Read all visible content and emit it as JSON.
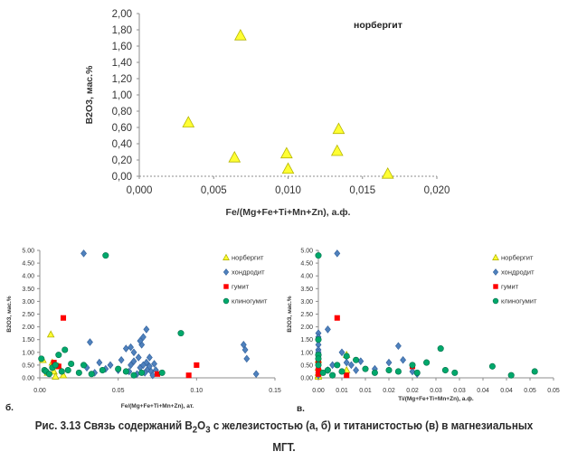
{
  "chart_data": [
    {
      "type": "scatter",
      "panel_label": "",
      "title": "норбергит",
      "xlabel": "Fe/(Mg+Fe+Ti+Mn+Zn), а.ф.",
      "ylabel": "B2O3, мас.%",
      "xlim": [
        0,
        0.02
      ],
      "ylim": [
        0,
        2
      ],
      "x_ticks": [
        "0,000",
        "0,005",
        "0,010",
        "0,015",
        "0,020"
      ],
      "y_ticks": [
        "0,00",
        "0,20",
        "0,40",
        "0,60",
        "0,80",
        "1,00",
        "1,20",
        "1,40",
        "1,60",
        "1,80",
        "2,00"
      ],
      "grid": false,
      "series": [
        {
          "marker": "triangle",
          "color": "#ffff33",
          "points": [
            [
              0.0033,
              0.66
            ],
            [
              0.0064,
              0.23
            ],
            [
              0.0068,
              1.73
            ],
            [
              0.0099,
              0.28
            ],
            [
              0.01,
              0.09
            ],
            [
              0.0133,
              0.31
            ],
            [
              0.0134,
              0.58
            ],
            [
              0.0167,
              0.03
            ]
          ]
        }
      ]
    },
    {
      "type": "scatter",
      "panel_label": "б.",
      "xlabel": "Fe/(Mg+Fe+Ti+Mn+Zn), ат.",
      "ylabel": "B2O3, мас.%",
      "xlim": [
        0,
        0.15
      ],
      "ylim": [
        0,
        5
      ],
      "x_ticks": [
        "0.00",
        "0.05",
        "0.10",
        "0.15"
      ],
      "y_ticks": [
        "0.00",
        "0.50",
        "1.00",
        "1.50",
        "2.00",
        "2.50",
        "3.00",
        "3.50",
        "4.00",
        "4.50",
        "5.00"
      ],
      "legend_position": "top-right",
      "grid": false,
      "series": [
        {
          "name": "норбергит",
          "marker": "triangle",
          "color": "#ffff33",
          "points": [
            [
              0.002,
              0.7
            ],
            [
              0.007,
              1.7
            ],
            [
              0.009,
              0.25
            ],
            [
              0.01,
              0.05
            ],
            [
              0.012,
              0.45
            ],
            [
              0.005,
              0.2
            ],
            [
              0.015,
              0.1
            ],
            [
              0.008,
              0.6
            ]
          ]
        },
        {
          "name": "хондродит",
          "marker": "diamond",
          "color": "#4f81bd",
          "points": [
            [
              0.028,
              4.88
            ],
            [
              0.032,
              1.4
            ],
            [
              0.03,
              0.4
            ],
            [
              0.035,
              0.2
            ],
            [
              0.038,
              0.6
            ],
            [
              0.042,
              0.35
            ],
            [
              0.045,
              0.5
            ],
            [
              0.05,
              0.3
            ],
            [
              0.052,
              0.7
            ],
            [
              0.055,
              1.15
            ],
            [
              0.057,
              0.25
            ],
            [
              0.058,
              0.5
            ],
            [
              0.06,
              1.0
            ],
            [
              0.062,
              0.15
            ],
            [
              0.063,
              0.8
            ],
            [
              0.064,
              0.4
            ],
            [
              0.065,
              1.3
            ],
            [
              0.066,
              1.6
            ],
            [
              0.067,
              0.2
            ],
            [
              0.068,
              0.6
            ],
            [
              0.069,
              0.35
            ],
            [
              0.07,
              0.45
            ],
            [
              0.071,
              0.25
            ],
            [
              0.072,
              0.1
            ],
            [
              0.073,
              0.55
            ],
            [
              0.074,
              0.3
            ],
            [
              0.06,
              0.65
            ],
            [
              0.058,
              1.2
            ],
            [
              0.066,
              0.5
            ],
            [
              0.068,
              1.9
            ],
            [
              0.064,
              1.45
            ],
            [
              0.07,
              0.8
            ],
            [
              0.13,
              1.3
            ],
            [
              0.131,
              1.1
            ],
            [
              0.132,
              0.75
            ],
            [
              0.138,
              0.15
            ]
          ]
        },
        {
          "name": "гумит",
          "marker": "square",
          "color": "#ff0000",
          "points": [
            [
              0.009,
              0.6
            ],
            [
              0.012,
              0.45
            ],
            [
              0.015,
              2.35
            ],
            [
              0.075,
              0.15
            ],
            [
              0.095,
              0.1
            ],
            [
              0.1,
              0.5
            ]
          ]
        },
        {
          "name": "клиногумит",
          "marker": "circle",
          "color": "#00a86b",
          "points": [
            [
              0.001,
              0.75
            ],
            [
              0.003,
              0.3
            ],
            [
              0.004,
              0.25
            ],
            [
              0.006,
              0.15
            ],
            [
              0.008,
              0.4
            ],
            [
              0.01,
              0.5
            ],
            [
              0.012,
              0.9
            ],
            [
              0.014,
              0.25
            ],
            [
              0.016,
              1.1
            ],
            [
              0.018,
              0.3
            ],
            [
              0.02,
              0.55
            ],
            [
              0.025,
              0.2
            ],
            [
              0.028,
              0.5
            ],
            [
              0.033,
              0.15
            ],
            [
              0.04,
              0.3
            ],
            [
              0.042,
              4.8
            ],
            [
              0.05,
              0.35
            ],
            [
              0.055,
              0.25
            ],
            [
              0.06,
              0.1
            ],
            [
              0.065,
              0.2
            ],
            [
              0.078,
              0.2
            ],
            [
              0.09,
              1.75
            ]
          ]
        }
      ]
    },
    {
      "type": "scatter",
      "panel_label": "в.",
      "xlabel": "Ti/(Mg+Fe+Ti+Mn+Zn), а.ф.",
      "ylabel": "B2O3, мас.%",
      "xlim": [
        0,
        0.05
      ],
      "ylim": [
        0,
        5
      ],
      "x_ticks": [
        "0.00",
        "0.01",
        "0.01",
        "0.02",
        "0.02",
        "0.03",
        "0.03",
        "0.04",
        "0.04",
        "0.05",
        "0.05"
      ],
      "y_ticks": [
        "0.00",
        "0.50",
        "1.00",
        "1.50",
        "2.00",
        "2.50",
        "3.00",
        "3.50",
        "4.00",
        "4.50",
        "5.00"
      ],
      "legend_position": "top-right",
      "grid": false,
      "series": [
        {
          "name": "норбергит",
          "marker": "triangle",
          "color": "#ffff33",
          "points": [
            [
              0.0,
              0.7
            ],
            [
              0.0,
              0.1
            ],
            [
              0.0,
              0.2
            ],
            [
              0.006,
              0.3
            ],
            [
              0.006,
              0.9
            ],
            [
              0.0,
              0.4
            ],
            [
              0.0,
              0.05
            ]
          ]
        },
        {
          "name": "хондродит",
          "marker": "diamond",
          "color": "#4f81bd",
          "points": [
            [
              0.0,
              1.75
            ],
            [
              0.0,
              1.6
            ],
            [
              0.0,
              1.3
            ],
            [
              0.0,
              1.1
            ],
            [
              0.0,
              1.0
            ],
            [
              0.0,
              0.85
            ],
            [
              0.0,
              0.6
            ],
            [
              0.0,
              0.5
            ],
            [
              0.0,
              0.35
            ],
            [
              0.0,
              0.2
            ],
            [
              0.0,
              0.1
            ],
            [
              0.002,
              1.9
            ],
            [
              0.002,
              0.3
            ],
            [
              0.003,
              0.5
            ],
            [
              0.004,
              4.88
            ],
            [
              0.005,
              1.0
            ],
            [
              0.006,
              0.6
            ],
            [
              0.007,
              0.5
            ],
            [
              0.008,
              0.3
            ],
            [
              0.009,
              0.65
            ],
            [
              0.012,
              0.35
            ],
            [
              0.015,
              0.6
            ],
            [
              0.017,
              1.25
            ],
            [
              0.018,
              0.7
            ],
            [
              0.02,
              0.25
            ],
            [
              0.021,
              0.15
            ]
          ]
        },
        {
          "name": "гумит",
          "marker": "square",
          "color": "#ff0000",
          "points": [
            [
              0.0,
              0.6
            ],
            [
              0.0,
              0.3
            ],
            [
              0.004,
              2.35
            ],
            [
              0.006,
              0.1
            ],
            [
              0.0,
              0.15
            ],
            [
              0.02,
              0.45
            ]
          ]
        },
        {
          "name": "клиногумит",
          "marker": "circle",
          "color": "#00a86b",
          "points": [
            [
              0.0,
              4.8
            ],
            [
              0.0,
              1.5
            ],
            [
              0.0,
              0.9
            ],
            [
              0.0,
              0.75
            ],
            [
              0.0,
              0.5
            ],
            [
              0.001,
              0.2
            ],
            [
              0.002,
              0.3
            ],
            [
              0.003,
              0.1
            ],
            [
              0.004,
              0.5
            ],
            [
              0.005,
              0.25
            ],
            [
              0.006,
              0.85
            ],
            [
              0.008,
              0.7
            ],
            [
              0.01,
              0.35
            ],
            [
              0.012,
              0.2
            ],
            [
              0.015,
              0.3
            ],
            [
              0.017,
              0.25
            ],
            [
              0.02,
              0.5
            ],
            [
              0.021,
              0.2
            ],
            [
              0.023,
              0.6
            ],
            [
              0.026,
              1.15
            ],
            [
              0.027,
              0.3
            ],
            [
              0.029,
              0.2
            ],
            [
              0.037,
              0.45
            ],
            [
              0.041,
              0.1
            ],
            [
              0.046,
              0.25
            ]
          ]
        }
      ]
    }
  ],
  "caption": {
    "line1_pre": "Рис. 3.13 Связь содержаний B",
    "line1_sub1": "2",
    "line1_mid": "O",
    "line1_sub2": "3",
    "line1_post": " с железистостью  (а, б) и титанистостью  (в) в магнезиальных",
    "line2": "МГТ."
  }
}
